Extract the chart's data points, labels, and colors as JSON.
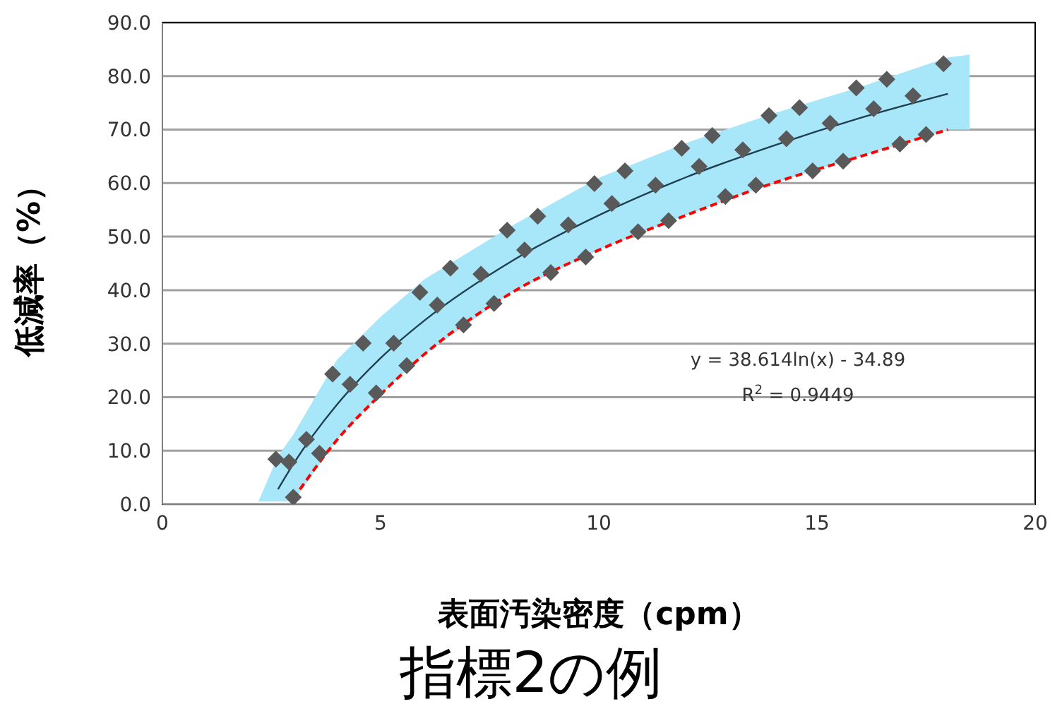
{
  "chart_data": {
    "type": "scatter",
    "title": "指標2の例",
    "xlabel": "表面汚染密度（cpm）",
    "ylabel": "低減率（%）",
    "xlim": [
      0,
      20
    ],
    "xticks": [
      0,
      5,
      10,
      15,
      20
    ],
    "ylim": [
      0,
      90
    ],
    "yticks": [
      {
        "value": 0,
        "label": "0.0"
      },
      {
        "value": 10,
        "label": "10.0"
      },
      {
        "value": 20,
        "label": "20.0"
      },
      {
        "value": 30,
        "label": "30.0"
      },
      {
        "value": 40,
        "label": "40.0"
      },
      {
        "value": 50,
        "label": "50.0"
      },
      {
        "value": 60,
        "label": "60.0"
      },
      {
        "value": 70,
        "label": "70.0"
      },
      {
        "value": 80,
        "label": "80.0"
      },
      {
        "value": 90,
        "label": "90.0"
      }
    ],
    "grid": "y",
    "annotations": [
      "y = 38.614ln(x) - 34.89",
      "R$^{2}$ = 0.9449"
    ],
    "series": [
      {
        "color": "#595959",
        "marker": "diamond",
        "x": [
          2.6,
          2.9,
          3.0,
          3.3,
          3.6,
          3.9,
          4.3,
          4.6,
          4.9,
          5.3,
          5.6,
          5.9,
          6.3,
          6.6,
          6.9,
          7.3,
          7.6,
          7.9,
          8.3,
          8.6,
          8.9,
          9.3,
          9.7,
          9.9,
          10.3,
          10.6,
          10.9,
          11.3,
          11.6,
          11.9,
          12.3,
          12.6,
          12.9,
          13.3,
          13.6,
          13.9,
          14.3,
          14.6,
          14.9,
          15.3,
          15.6,
          15.9,
          16.3,
          16.6,
          16.9,
          17.2,
          17.5,
          17.9
        ],
        "values": [
          8.4,
          7.9,
          1.3,
          12.1,
          9.5,
          24.3,
          22.4,
          30.1,
          20.8,
          30.1,
          25.9,
          39.6,
          37.2,
          44.1,
          33.5,
          43.0,
          37.5,
          51.2,
          47.5,
          53.8,
          43.3,
          52.2,
          46.2,
          59.9,
          56.2,
          62.3,
          50.9,
          59.6,
          53.0,
          66.5,
          63.1,
          68.9,
          57.5,
          66.2,
          59.6,
          72.6,
          68.3,
          74.1,
          62.3,
          71.2,
          64.1,
          77.8,
          73.9,
          79.4,
          67.3,
          76.3,
          69.1,
          82.3
        ]
      },
      {
        "type": "line",
        "color": "#1f4050",
        "marker": "none",
        "line_style": "solid",
        "x": [
          2.2,
          2.65,
          3,
          4,
          5,
          6,
          8,
          10,
          12,
          14,
          16,
          18,
          18.5
        ],
        "values": [
          null,
          2.8,
          7.5,
          18.6,
          27.3,
          34.3,
          45.4,
          54.0,
          61.1,
          67.0,
          72.2,
          76.7,
          null
        ],
        "lower": [
          0.5,
          0.5,
          0.5,
          12,
          20.5,
          28,
          39.5,
          47.5,
          54,
          60,
          65,
          70,
          70
        ],
        "upper": [
          0.5,
          9,
          13,
          27,
          35,
          42,
          52,
          61,
          67.5,
          73,
          78,
          83.5,
          84
        ]
      },
      {
        "type": "line",
        "color": "#ff0000",
        "marker": "none",
        "line_style": "dashed",
        "x": [
          3,
          4,
          5,
          6,
          8,
          10,
          12,
          14,
          16,
          18
        ],
        "values": [
          1,
          12,
          20.5,
          28,
          39.5,
          47.5,
          54,
          60,
          65,
          70
        ]
      }
    ]
  }
}
